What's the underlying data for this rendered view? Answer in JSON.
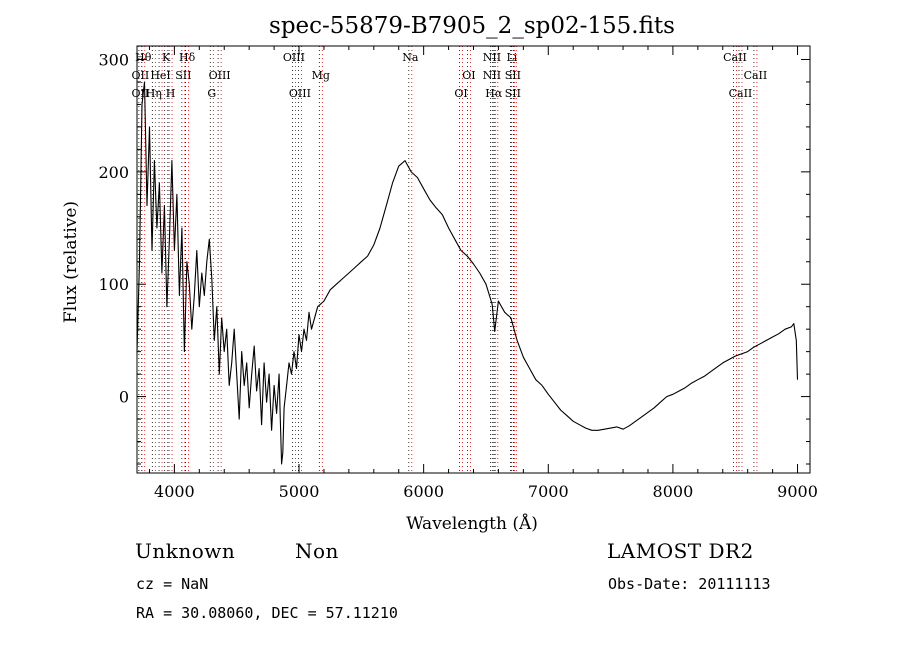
{
  "chart_data": {
    "type": "line",
    "title": "spec-55879-B7905_2_sp02-155.fits",
    "xlabel": "Wavelength (Å)",
    "ylabel": "Flux (relative)",
    "xlim": [
      3700,
      9100
    ],
    "ylim": [
      -68,
      312
    ],
    "xticks": [
      4000,
      5000,
      6000,
      7000,
      8000,
      9000
    ],
    "yticks": [
      0,
      100,
      200,
      300
    ],
    "grid": false,
    "series": [
      {
        "color": "#000000",
        "points": [
          [
            3700,
            40
          ],
          [
            3720,
            120
          ],
          [
            3740,
            260
          ],
          [
            3760,
            280
          ],
          [
            3780,
            170
          ],
          [
            3800,
            240
          ],
          [
            3820,
            130
          ],
          [
            3840,
            210
          ],
          [
            3860,
            150
          ],
          [
            3880,
            190
          ],
          [
            3900,
            110
          ],
          [
            3920,
            170
          ],
          [
            3940,
            80
          ],
          [
            3960,
            140
          ],
          [
            3980,
            210
          ],
          [
            4000,
            130
          ],
          [
            4020,
            180
          ],
          [
            4040,
            90
          ],
          [
            4060,
            150
          ],
          [
            4080,
            40
          ],
          [
            4100,
            120
          ],
          [
            4120,
            100
          ],
          [
            4140,
            60
          ],
          [
            4160,
            90
          ],
          [
            4180,
            130
          ],
          [
            4200,
            80
          ],
          [
            4220,
            110
          ],
          [
            4240,
            90
          ],
          [
            4260,
            120
          ],
          [
            4280,
            140
          ],
          [
            4300,
            105
          ],
          [
            4320,
            50
          ],
          [
            4340,
            80
          ],
          [
            4360,
            20
          ],
          [
            4380,
            70
          ],
          [
            4400,
            40
          ],
          [
            4420,
            60
          ],
          [
            4440,
            10
          ],
          [
            4460,
            30
          ],
          [
            4480,
            60
          ],
          [
            4500,
            20
          ],
          [
            4520,
            -20
          ],
          [
            4540,
            40
          ],
          [
            4560,
            10
          ],
          [
            4580,
            30
          ],
          [
            4600,
            -10
          ],
          [
            4620,
            20
          ],
          [
            4640,
            45
          ],
          [
            4660,
            5
          ],
          [
            4680,
            25
          ],
          [
            4700,
            -25
          ],
          [
            4720,
            30
          ],
          [
            4740,
            -5
          ],
          [
            4760,
            20
          ],
          [
            4780,
            -30
          ],
          [
            4800,
            10
          ],
          [
            4820,
            -15
          ],
          [
            4840,
            20
          ],
          [
            4850,
            -20
          ],
          [
            4860,
            -60
          ],
          [
            4870,
            -50
          ],
          [
            4880,
            -10
          ],
          [
            4900,
            10
          ],
          [
            4920,
            30
          ],
          [
            4940,
            20
          ],
          [
            4960,
            40
          ],
          [
            4980,
            25
          ],
          [
            5000,
            55
          ],
          [
            5020,
            40
          ],
          [
            5040,
            60
          ],
          [
            5060,
            50
          ],
          [
            5080,
            75
          ],
          [
            5100,
            60
          ],
          [
            5150,
            80
          ],
          [
            5200,
            85
          ],
          [
            5250,
            95
          ],
          [
            5300,
            100
          ],
          [
            5350,
            105
          ],
          [
            5400,
            110
          ],
          [
            5450,
            115
          ],
          [
            5500,
            120
          ],
          [
            5550,
            125
          ],
          [
            5600,
            135
          ],
          [
            5650,
            150
          ],
          [
            5700,
            170
          ],
          [
            5750,
            190
          ],
          [
            5800,
            205
          ],
          [
            5850,
            210
          ],
          [
            5900,
            200
          ],
          [
            5950,
            195
          ],
          [
            6000,
            185
          ],
          [
            6050,
            175
          ],
          [
            6100,
            168
          ],
          [
            6150,
            162
          ],
          [
            6200,
            150
          ],
          [
            6250,
            140
          ],
          [
            6300,
            130
          ],
          [
            6350,
            125
          ],
          [
            6400,
            118
          ],
          [
            6450,
            110
          ],
          [
            6500,
            100
          ],
          [
            6550,
            82
          ],
          [
            6570,
            58
          ],
          [
            6600,
            85
          ],
          [
            6650,
            75
          ],
          [
            6700,
            70
          ],
          [
            6750,
            50
          ],
          [
            6800,
            35
          ],
          [
            6850,
            25
          ],
          [
            6900,
            15
          ],
          [
            6950,
            10
          ],
          [
            7000,
            2
          ],
          [
            7050,
            -5
          ],
          [
            7100,
            -12
          ],
          [
            7150,
            -17
          ],
          [
            7200,
            -22
          ],
          [
            7250,
            -25
          ],
          [
            7300,
            -28
          ],
          [
            7350,
            -30
          ],
          [
            7400,
            -30
          ],
          [
            7450,
            -29
          ],
          [
            7500,
            -28
          ],
          [
            7550,
            -27
          ],
          [
            7600,
            -29
          ],
          [
            7650,
            -26
          ],
          [
            7700,
            -22
          ],
          [
            7750,
            -18
          ],
          [
            7800,
            -14
          ],
          [
            7850,
            -10
          ],
          [
            7900,
            -5
          ],
          [
            7950,
            0
          ],
          [
            8000,
            2
          ],
          [
            8050,
            5
          ],
          [
            8100,
            8
          ],
          [
            8150,
            12
          ],
          [
            8200,
            15
          ],
          [
            8250,
            18
          ],
          [
            8300,
            22
          ],
          [
            8350,
            26
          ],
          [
            8400,
            30
          ],
          [
            8450,
            33
          ],
          [
            8500,
            36
          ],
          [
            8550,
            38
          ],
          [
            8600,
            40
          ],
          [
            8650,
            44
          ],
          [
            8700,
            47
          ],
          [
            8750,
            50
          ],
          [
            8800,
            53
          ],
          [
            8850,
            56
          ],
          [
            8900,
            60
          ],
          [
            8950,
            62
          ],
          [
            8970,
            65
          ],
          [
            8990,
            50
          ],
          [
            9000,
            15
          ]
        ]
      }
    ],
    "lines": [
      {
        "x": 3727,
        "labels": [
          "OII",
          "OII"
        ],
        "rows": [
          1,
          2
        ]
      },
      {
        "x": 3750,
        "labels": [
          "Hθ"
        ],
        "rows": [
          0
        ]
      },
      {
        "x": 3835,
        "labels": [
          "Hη"
        ],
        "rows": [
          2
        ]
      },
      {
        "x": 3889,
        "labels": [
          "HeI"
        ],
        "rows": [
          1
        ]
      },
      {
        "x": 3934,
        "labels": [
          "K"
        ],
        "rows": [
          0
        ]
      },
      {
        "x": 3969,
        "labels": [
          "H"
        ],
        "rows": [
          2
        ]
      },
      {
        "x": 4072,
        "labels": [
          "SII"
        ],
        "rows": [
          1
        ]
      },
      {
        "x": 4102,
        "labels": [
          "Hδ"
        ],
        "rows": [
          0
        ]
      },
      {
        "x": 4300,
        "labels": [
          "G"
        ],
        "rows": [
          2
        ]
      },
      {
        "x": 4363,
        "labels": [
          "OIII"
        ],
        "rows": [
          1
        ]
      },
      {
        "x": 4959,
        "labels": [
          "OIII"
        ],
        "rows": [
          0
        ]
      },
      {
        "x": 5007,
        "labels": [
          "OIII"
        ],
        "rows": [
          2
        ]
      },
      {
        "x": 5175,
        "labels": [
          "Mg"
        ],
        "rows": [
          1
        ]
      },
      {
        "x": 5893,
        "labels": [
          "Na"
        ],
        "rows": [
          0
        ]
      },
      {
        "x": 6300,
        "labels": [
          "OI"
        ],
        "rows": [
          2
        ]
      },
      {
        "x": 6363,
        "labels": [
          "OI"
        ],
        "rows": [
          1
        ]
      },
      {
        "x": 6548,
        "labels": [
          "NII",
          "NII"
        ],
        "rows": [
          0,
          1
        ]
      },
      {
        "x": 6563,
        "labels": [
          "Hα"
        ],
        "rows": [
          2
        ]
      },
      {
        "x": 6583,
        "labels": [],
        "rows": []
      },
      {
        "x": 6708,
        "labels": [
          "Li"
        ],
        "rows": [
          0
        ]
      },
      {
        "x": 6716,
        "labels": [
          "SII",
          "SII"
        ],
        "rows": [
          1,
          2
        ]
      },
      {
        "x": 6731,
        "labels": [],
        "rows": []
      },
      {
        "x": 8498,
        "labels": [
          "CaII"
        ],
        "rows": [
          0
        ]
      },
      {
        "x": 8542,
        "labels": [
          "CaII"
        ],
        "rows": [
          2
        ]
      },
      {
        "x": 8662,
        "labels": [
          "CaII"
        ],
        "rows": [
          1
        ]
      }
    ],
    "line_colors": {
      "dotted_black": "#000000",
      "dotted_red": "#cc0000"
    }
  },
  "info": {
    "class": "Unknown",
    "subclass": "Non",
    "survey": "LAMOST DR2",
    "cz": "cz = NaN",
    "obs_date": "Obs-Date: 20111113",
    "coords": "RA =  30.08060, DEC =  57.11210"
  }
}
